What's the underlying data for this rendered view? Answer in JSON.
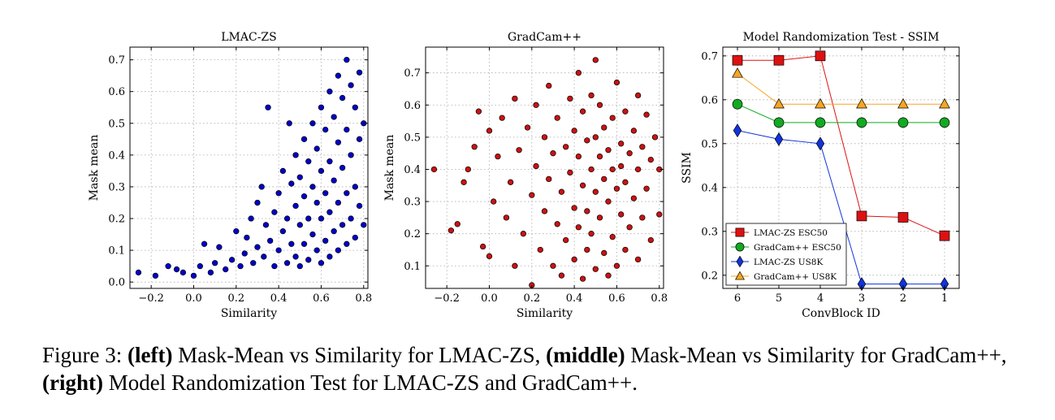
{
  "chart_data": [
    {
      "type": "scatter",
      "title": "LMAC-ZS",
      "xlabel": "Similarity",
      "ylabel": "Mask mean",
      "xlim": [
        -0.3,
        0.82
      ],
      "ylim": [
        -0.02,
        0.74
      ],
      "xticks": [
        -0.2,
        0.0,
        0.2,
        0.4,
        0.6,
        0.8
      ],
      "yticks": [
        0.0,
        0.1,
        0.2,
        0.3,
        0.4,
        0.5,
        0.6,
        0.7
      ],
      "grid": true,
      "color": "#0000cc",
      "points": [
        [
          -0.26,
          0.03
        ],
        [
          -0.18,
          0.02
        ],
        [
          -0.12,
          0.05
        ],
        [
          -0.08,
          0.04
        ],
        [
          -0.05,
          0.03
        ],
        [
          0.0,
          0.02
        ],
        [
          0.03,
          0.05
        ],
        [
          0.05,
          0.12
        ],
        [
          0.08,
          0.03
        ],
        [
          0.1,
          0.06
        ],
        [
          0.12,
          0.11
        ],
        [
          0.15,
          0.04
        ],
        [
          0.18,
          0.07
        ],
        [
          0.2,
          0.16
        ],
        [
          0.22,
          0.05
        ],
        [
          0.24,
          0.09
        ],
        [
          0.25,
          0.14
        ],
        [
          0.27,
          0.2
        ],
        [
          0.28,
          0.06
        ],
        [
          0.3,
          0.25
        ],
        [
          0.3,
          0.11
        ],
        [
          0.32,
          0.3
        ],
        [
          0.33,
          0.08
        ],
        [
          0.34,
          0.18
        ],
        [
          0.35,
          0.55
        ],
        [
          0.36,
          0.13
        ],
        [
          0.38,
          0.22
        ],
        [
          0.38,
          0.05
        ],
        [
          0.4,
          0.28
        ],
        [
          0.4,
          0.1
        ],
        [
          0.42,
          0.35
        ],
        [
          0.42,
          0.16
        ],
        [
          0.44,
          0.2
        ],
        [
          0.44,
          0.06
        ],
        [
          0.45,
          0.5
        ],
        [
          0.46,
          0.31
        ],
        [
          0.46,
          0.12
        ],
        [
          0.48,
          0.4
        ],
        [
          0.48,
          0.24
        ],
        [
          0.48,
          0.08
        ],
        [
          0.5,
          0.33
        ],
        [
          0.5,
          0.18
        ],
        [
          0.5,
          0.05
        ],
        [
          0.52,
          0.45
        ],
        [
          0.52,
          0.27
        ],
        [
          0.52,
          0.12
        ],
        [
          0.54,
          0.38
        ],
        [
          0.54,
          0.2
        ],
        [
          0.54,
          0.07
        ],
        [
          0.56,
          0.5
        ],
        [
          0.56,
          0.3
        ],
        [
          0.56,
          0.15
        ],
        [
          0.58,
          0.42
        ],
        [
          0.58,
          0.25
        ],
        [
          0.58,
          0.1
        ],
        [
          0.6,
          0.55
        ],
        [
          0.6,
          0.35
        ],
        [
          0.6,
          0.2
        ],
        [
          0.6,
          0.06
        ],
        [
          0.62,
          0.48
        ],
        [
          0.62,
          0.28
        ],
        [
          0.62,
          0.13
        ],
        [
          0.64,
          0.6
        ],
        [
          0.64,
          0.38
        ],
        [
          0.64,
          0.22
        ],
        [
          0.64,
          0.08
        ],
        [
          0.66,
          0.52
        ],
        [
          0.66,
          0.32
        ],
        [
          0.66,
          0.16
        ],
        [
          0.68,
          0.65
        ],
        [
          0.68,
          0.44
        ],
        [
          0.68,
          0.25
        ],
        [
          0.68,
          0.1
        ],
        [
          0.7,
          0.58
        ],
        [
          0.7,
          0.36
        ],
        [
          0.7,
          0.18
        ],
        [
          0.72,
          0.7
        ],
        [
          0.72,
          0.48
        ],
        [
          0.72,
          0.28
        ],
        [
          0.72,
          0.12
        ],
        [
          0.74,
          0.62
        ],
        [
          0.74,
          0.4
        ],
        [
          0.74,
          0.2
        ],
        [
          0.76,
          0.55
        ],
        [
          0.76,
          0.3
        ],
        [
          0.76,
          0.14
        ],
        [
          0.78,
          0.66
        ],
        [
          0.78,
          0.45
        ],
        [
          0.78,
          0.24
        ],
        [
          0.8,
          0.5
        ],
        [
          0.8,
          0.18
        ]
      ]
    },
    {
      "type": "scatter",
      "title": "GradCam++",
      "xlabel": "Similarity",
      "ylabel": "Mask mean",
      "xlim": [
        -0.3,
        0.82
      ],
      "ylim": [
        0.03,
        0.78
      ],
      "xticks": [
        -0.2,
        0.0,
        0.2,
        0.4,
        0.6,
        0.8
      ],
      "yticks": [
        0.1,
        0.2,
        0.3,
        0.4,
        0.5,
        0.6,
        0.7
      ],
      "grid": true,
      "color": "#cc1111",
      "points": [
        [
          -0.26,
          0.4
        ],
        [
          -0.18,
          0.21
        ],
        [
          -0.15,
          0.23
        ],
        [
          -0.12,
          0.36
        ],
        [
          -0.1,
          0.4
        ],
        [
          -0.07,
          0.47
        ],
        [
          -0.05,
          0.58
        ],
        [
          -0.03,
          0.16
        ],
        [
          0.0,
          0.52
        ],
        [
          0.0,
          0.13
        ],
        [
          0.02,
          0.3
        ],
        [
          0.04,
          0.44
        ],
        [
          0.06,
          0.56
        ],
        [
          0.08,
          0.25
        ],
        [
          0.1,
          0.36
        ],
        [
          0.12,
          0.62
        ],
        [
          0.12,
          0.1
        ],
        [
          0.14,
          0.46
        ],
        [
          0.16,
          0.2
        ],
        [
          0.18,
          0.53
        ],
        [
          0.2,
          0.32
        ],
        [
          0.2,
          0.04
        ],
        [
          0.22,
          0.6
        ],
        [
          0.22,
          0.41
        ],
        [
          0.24,
          0.15
        ],
        [
          0.26,
          0.5
        ],
        [
          0.26,
          0.27
        ],
        [
          0.28,
          0.66
        ],
        [
          0.28,
          0.37
        ],
        [
          0.3,
          0.1
        ],
        [
          0.3,
          0.45
        ],
        [
          0.32,
          0.23
        ],
        [
          0.32,
          0.56
        ],
        [
          0.34,
          0.33
        ],
        [
          0.34,
          0.07
        ],
        [
          0.36,
          0.47
        ],
        [
          0.36,
          0.18
        ],
        [
          0.38,
          0.62
        ],
        [
          0.38,
          0.39
        ],
        [
          0.4,
          0.28
        ],
        [
          0.4,
          0.52
        ],
        [
          0.4,
          0.12
        ],
        [
          0.42,
          0.7
        ],
        [
          0.42,
          0.44
        ],
        [
          0.42,
          0.22
        ],
        [
          0.44,
          0.35
        ],
        [
          0.44,
          0.58
        ],
        [
          0.44,
          0.06
        ],
        [
          0.46,
          0.49
        ],
        [
          0.46,
          0.27
        ],
        [
          0.46,
          0.15
        ],
        [
          0.48,
          0.4
        ],
        [
          0.48,
          0.63
        ],
        [
          0.48,
          0.2
        ],
        [
          0.5,
          0.74
        ],
        [
          0.5,
          0.33
        ],
        [
          0.5,
          0.5
        ],
        [
          0.5,
          0.09
        ],
        [
          0.52,
          0.44
        ],
        [
          0.52,
          0.25
        ],
        [
          0.52,
          0.6
        ],
        [
          0.54,
          0.37
        ],
        [
          0.54,
          0.14
        ],
        [
          0.54,
          0.53
        ],
        [
          0.56,
          0.3
        ],
        [
          0.56,
          0.46
        ],
        [
          0.56,
          0.07
        ],
        [
          0.58,
          0.4
        ],
        [
          0.58,
          0.56
        ],
        [
          0.58,
          0.19
        ],
        [
          0.6,
          0.34
        ],
        [
          0.6,
          0.67
        ],
        [
          0.6,
          0.1
        ],
        [
          0.62,
          0.48
        ],
        [
          0.62,
          0.26
        ],
        [
          0.62,
          0.41
        ],
        [
          0.64,
          0.58
        ],
        [
          0.64,
          0.15
        ],
        [
          0.64,
          0.36
        ],
        [
          0.66,
          0.45
        ],
        [
          0.66,
          0.22
        ],
        [
          0.68,
          0.52
        ],
        [
          0.68,
          0.31
        ],
        [
          0.7,
          0.63
        ],
        [
          0.7,
          0.12
        ],
        [
          0.7,
          0.4
        ],
        [
          0.72,
          0.47
        ],
        [
          0.72,
          0.25
        ],
        [
          0.74,
          0.57
        ],
        [
          0.74,
          0.34
        ],
        [
          0.76,
          0.43
        ],
        [
          0.76,
          0.18
        ],
        [
          0.78,
          0.5
        ],
        [
          0.8,
          0.4
        ],
        [
          0.8,
          0.26
        ]
      ]
    },
    {
      "type": "line",
      "title": "Model Randomization Test - SSIM",
      "xlabel": "ConvBlock ID",
      "ylabel": "SSIM",
      "categories": [
        "6",
        "5",
        "4",
        "3",
        "2",
        "1"
      ],
      "ylim": [
        0.17,
        0.72
      ],
      "yticks": [
        0.2,
        0.3,
        0.4,
        0.5,
        0.6,
        0.7
      ],
      "grid": true,
      "legend_position": "bottom-left",
      "series": [
        {
          "name": "LMAC-ZS ESC50",
          "color": "#dd1111",
          "marker": "square",
          "values": [
            0.69,
            0.69,
            0.7,
            0.335,
            0.332,
            0.29
          ]
        },
        {
          "name": "GradCam++ ESC50",
          "color": "#11aa22",
          "marker": "circle",
          "values": [
            0.59,
            0.548,
            0.548,
            0.548,
            0.548,
            0.548
          ]
        },
        {
          "name": "LMAC-ZS US8K",
          "color": "#1133dd",
          "marker": "diamond",
          "values": [
            0.53,
            0.51,
            0.5,
            0.18,
            0.18,
            0.18
          ]
        },
        {
          "name": "GradCam++ US8K",
          "color": "#f5a623",
          "marker": "triangle",
          "values": [
            0.66,
            0.59,
            0.59,
            0.59,
            0.59,
            0.59
          ]
        }
      ]
    }
  ],
  "caption": {
    "prefix": "Figure 3: ",
    "left_tag": "(left)",
    "left_text": " Mask-Mean vs Similarity for LMAC-ZS, ",
    "middle_tag": "(middle)",
    "middle_text": " Mask-Mean vs Similarity for GradCam++, ",
    "right_tag": "(right)",
    "right_text": " Model Randomization Test for LMAC-ZS and GradCam++."
  }
}
